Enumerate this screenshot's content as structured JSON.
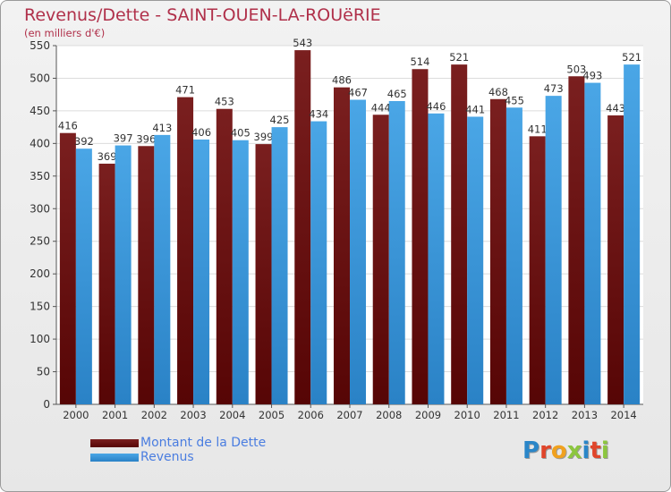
{
  "header": {
    "title": "Revenus/Dette - SAINT-OUEN-LA-ROUëRIE",
    "subtitle": "(en milliers d'€)"
  },
  "legend": {
    "debt_label": "Montant de la Dette",
    "revenue_label": "Revenus"
  },
  "logo": {
    "text": "Proxiti",
    "letter_colors": [
      "#2a86c8",
      "#e0452a",
      "#f0a11f",
      "#8cc63f",
      "#2a86c8",
      "#e0452a",
      "#8cc63f"
    ]
  },
  "colors": {
    "debt": "#7a1f1f",
    "debt_dark": "#560505",
    "revenue": "#4aa6e6",
    "revenue_dark": "#2a82c6"
  },
  "chart_data": {
    "type": "bar",
    "title": "Revenus/Dette - SAINT-OUEN-LA-ROUëRIE",
    "ylabel": "(en milliers d'€)",
    "xlabel": "",
    "categories": [
      "2000",
      "2001",
      "2002",
      "2003",
      "2004",
      "2005",
      "2006",
      "2007",
      "2008",
      "2009",
      "2010",
      "2011",
      "2012",
      "2013",
      "2014"
    ],
    "series": [
      {
        "name": "Montant de la Dette",
        "values": [
          416,
          369,
          396,
          471,
          453,
          399,
          543,
          486,
          444,
          514,
          521,
          468,
          411,
          503,
          443
        ]
      },
      {
        "name": "Revenus",
        "values": [
          392,
          397,
          413,
          406,
          405,
          425,
          434,
          467,
          465,
          446,
          441,
          455,
          473,
          493,
          521
        ]
      }
    ],
    "ylim": [
      0,
      550
    ],
    "yticks": [
      0,
      50,
      100,
      150,
      200,
      250,
      300,
      350,
      400,
      450,
      500,
      550
    ],
    "grid": true,
    "legend_position": "bottom-left"
  }
}
